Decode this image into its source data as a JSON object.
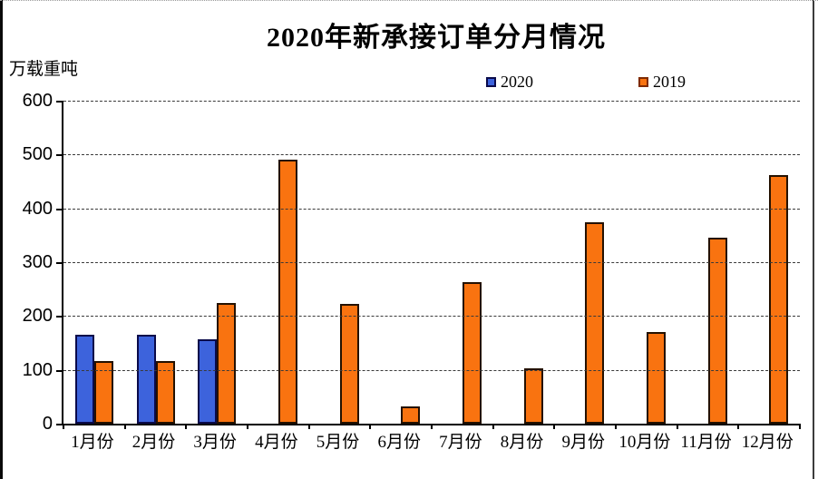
{
  "title": "2020年新承接订单分月情况",
  "unit_label": "万载重吨",
  "colors": {
    "background": "#ffffff",
    "axis": "#000000",
    "gridline": "#3a3a3a",
    "series_2020_fill": "#3D63DC",
    "series_2020_border": "#0A0A4A",
    "series_2019_fill": "#F97310",
    "series_2019_border": "#241100"
  },
  "chart_data": {
    "type": "bar",
    "title": "2020年新承接订单分月情况",
    "ylabel": "万载重吨",
    "xlabel": "",
    "categories": [
      "1月份",
      "2月份",
      "3月份",
      "4月份",
      "5月份",
      "6月份",
      "7月份",
      "8月份",
      "9月份",
      "10月份",
      "11月份",
      "12月份"
    ],
    "series": [
      {
        "name": "2020",
        "color": "#3D63DC",
        "border_color": "#0A0A4A",
        "values": [
          165,
          165,
          157,
          null,
          null,
          null,
          null,
          null,
          null,
          null,
          null,
          null
        ]
      },
      {
        "name": "2019",
        "color": "#F97310",
        "border_color": "#241100",
        "values": [
          117,
          117,
          225,
          490,
          223,
          32,
          263,
          102,
          374,
          171,
          345,
          461
        ]
      }
    ],
    "ylim": [
      0,
      600
    ],
    "yticks": [
      0,
      100,
      200,
      300,
      400,
      500,
      600
    ],
    "ytick_interval": 100,
    "grid": "horizontal-dashed",
    "legend_position": "top"
  }
}
